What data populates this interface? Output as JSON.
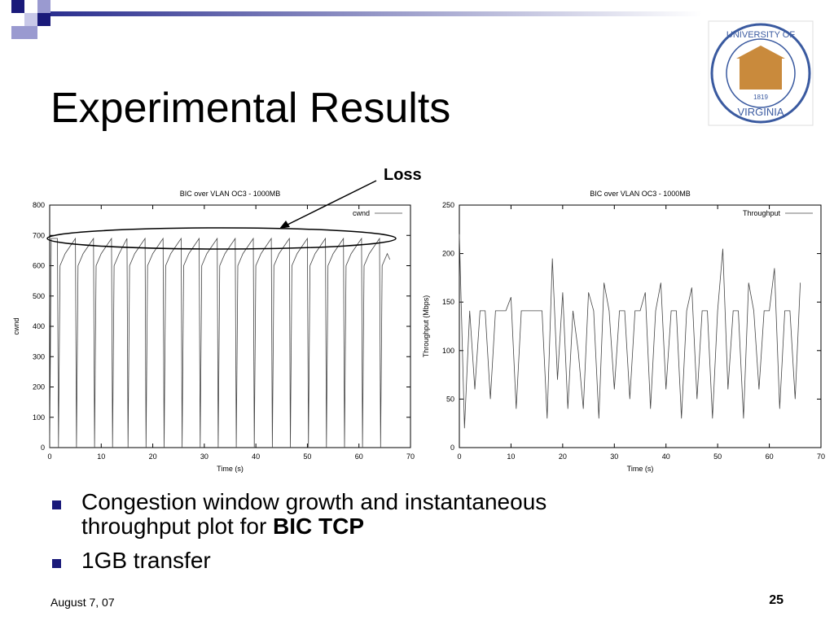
{
  "slide": {
    "title": "Experimental Results",
    "logo": {
      "top": "UNIVERSITY OF",
      "bottom": "VIRGINIA",
      "year": "1819"
    },
    "bullets": [
      {
        "lines": [
          "Congestion window growth and instantaneous",
          "throughput plot for "
        ],
        "bold": "BIC TCP"
      },
      {
        "lines": [
          "1GB transfer"
        ]
      }
    ],
    "footer": {
      "date": "August 7, 07",
      "page": "25"
    }
  },
  "chart_data": [
    {
      "type": "line",
      "title": "BIC over VLAN OC3 - 1000MB",
      "xlabel": "Time (s)",
      "ylabel": "cwnd",
      "annotation": "Loss",
      "legend": "top-right",
      "grid": false,
      "xlim": [
        0,
        70
      ],
      "xticks": [
        0,
        10,
        20,
        30,
        40,
        50,
        60,
        70
      ],
      "ylim": [
        0,
        800
      ],
      "yticks": [
        0,
        100,
        200,
        300,
        400,
        500,
        600,
        700,
        800
      ],
      "x": [
        0,
        0.3,
        1.5,
        1.7,
        2,
        3,
        5,
        5.2,
        5.5,
        6.5,
        8.5,
        8.7,
        9,
        10,
        12,
        12.2,
        12.5,
        13.5,
        15,
        15.2,
        15.5,
        16.5,
        18.5,
        18.7,
        19,
        20,
        22,
        22.2,
        22.5,
        23.5,
        25.5,
        25.7,
        26,
        27,
        29,
        29.2,
        29.5,
        30.5,
        32.5,
        32.7,
        33,
        34,
        36,
        36.2,
        36.5,
        37.5,
        39.5,
        39.7,
        40,
        41,
        43,
        43.2,
        43.5,
        44.5,
        46.5,
        46.7,
        47,
        48,
        50,
        50.2,
        50.5,
        51.5,
        53.5,
        53.7,
        54,
        55,
        57,
        57.2,
        57.5,
        58.5,
        60.5,
        60.7,
        61,
        62,
        64,
        64.2,
        64.5,
        65.5,
        66
      ],
      "series": [
        {
          "name": "cwnd",
          "color": "#444444",
          "values": [
            0,
            690,
            690,
            0,
            600,
            640,
            690,
            0,
            600,
            640,
            690,
            0,
            600,
            640,
            690,
            0,
            600,
            640,
            690,
            0,
            600,
            640,
            690,
            0,
            600,
            640,
            690,
            0,
            600,
            640,
            690,
            0,
            600,
            640,
            690,
            0,
            600,
            640,
            690,
            0,
            600,
            640,
            690,
            0,
            600,
            640,
            690,
            0,
            600,
            640,
            690,
            0,
            600,
            640,
            690,
            0,
            600,
            640,
            690,
            0,
            600,
            640,
            690,
            0,
            600,
            640,
            690,
            0,
            600,
            640,
            690,
            0,
            600,
            640,
            690,
            0,
            600,
            640,
            620
          ]
        }
      ]
    },
    {
      "type": "line",
      "title": "BIC over VLAN OC3 - 1000MB",
      "xlabel": "Time (s)",
      "ylabel": "Throughput (Mbps)",
      "legend": "top-right",
      "grid": false,
      "xlim": [
        0,
        70
      ],
      "xticks": [
        0,
        10,
        20,
        30,
        40,
        50,
        60,
        70
      ],
      "ylim": [
        0,
        250
      ],
      "yticks": [
        0,
        50,
        100,
        150,
        200,
        250
      ],
      "x": [
        0,
        1,
        2,
        3,
        4,
        5,
        6,
        7,
        8,
        9,
        10,
        11,
        12,
        13,
        14,
        15,
        16,
        17,
        18,
        19,
        20,
        21,
        22,
        23,
        24,
        25,
        26,
        27,
        28,
        29,
        30,
        31,
        32,
        33,
        34,
        35,
        36,
        37,
        38,
        39,
        40,
        41,
        42,
        43,
        44,
        45,
        46,
        47,
        48,
        49,
        50,
        51,
        52,
        53,
        54,
        55,
        56,
        57,
        58,
        59,
        60,
        61,
        62,
        63,
        64,
        65,
        66
      ],
      "series": [
        {
          "name": "Throughput",
          "color": "#444444",
          "values": [
            220,
            20,
            141,
            60,
            141,
            141,
            50,
            141,
            141,
            141,
            155,
            40,
            141,
            141,
            141,
            141,
            141,
            30,
            195,
            70,
            160,
            40,
            141,
            100,
            40,
            160,
            141,
            30,
            170,
            141,
            60,
            141,
            141,
            50,
            141,
            141,
            160,
            40,
            141,
            170,
            60,
            141,
            141,
            30,
            141,
            165,
            50,
            141,
            141,
            30,
            141,
            205,
            60,
            141,
            141,
            30,
            170,
            141,
            60,
            141,
            141,
            185,
            40,
            141,
            141,
            50,
            170
          ]
        }
      ]
    }
  ]
}
